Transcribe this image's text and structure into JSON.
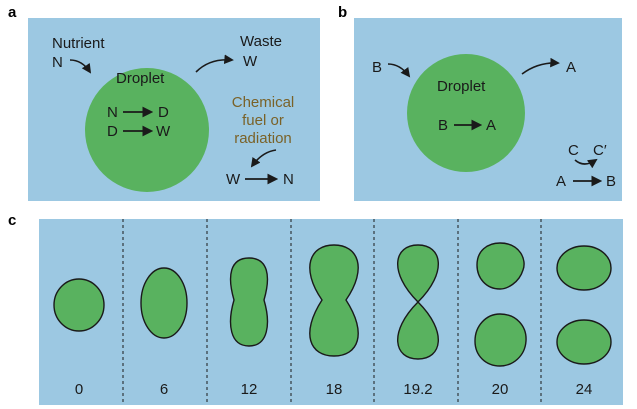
{
  "colors": {
    "panel_bg": "#9cc8e2",
    "droplet_fill": "#59b25f",
    "fuel_text": "#7a6228",
    "ink": "#1a1a1a"
  },
  "panel_a": {
    "label": "a",
    "nutrient_word": "Nutrient",
    "nutrient_symbol": "N",
    "waste_word": "Waste",
    "waste_symbol": "W",
    "droplet_label": "Droplet",
    "reaction1_left": "N",
    "reaction1_right": "D",
    "reaction2_left": "D",
    "reaction2_right": "W",
    "fuel_lines": [
      "Chemical",
      "fuel or",
      "radiation"
    ],
    "regen_left": "W",
    "regen_right": "N"
  },
  "panel_b": {
    "label": "b",
    "input_symbol": "B",
    "output_symbol": "A",
    "droplet_label": "Droplet",
    "reaction_left": "B",
    "reaction_right": "A",
    "cofactor_in": "C",
    "cofactor_out": "C′",
    "regen_left": "A",
    "regen_right": "B"
  },
  "panel_c": {
    "label": "c",
    "time_labels": [
      "0",
      "6",
      "12",
      "18",
      "19.2",
      "20",
      "24"
    ]
  }
}
